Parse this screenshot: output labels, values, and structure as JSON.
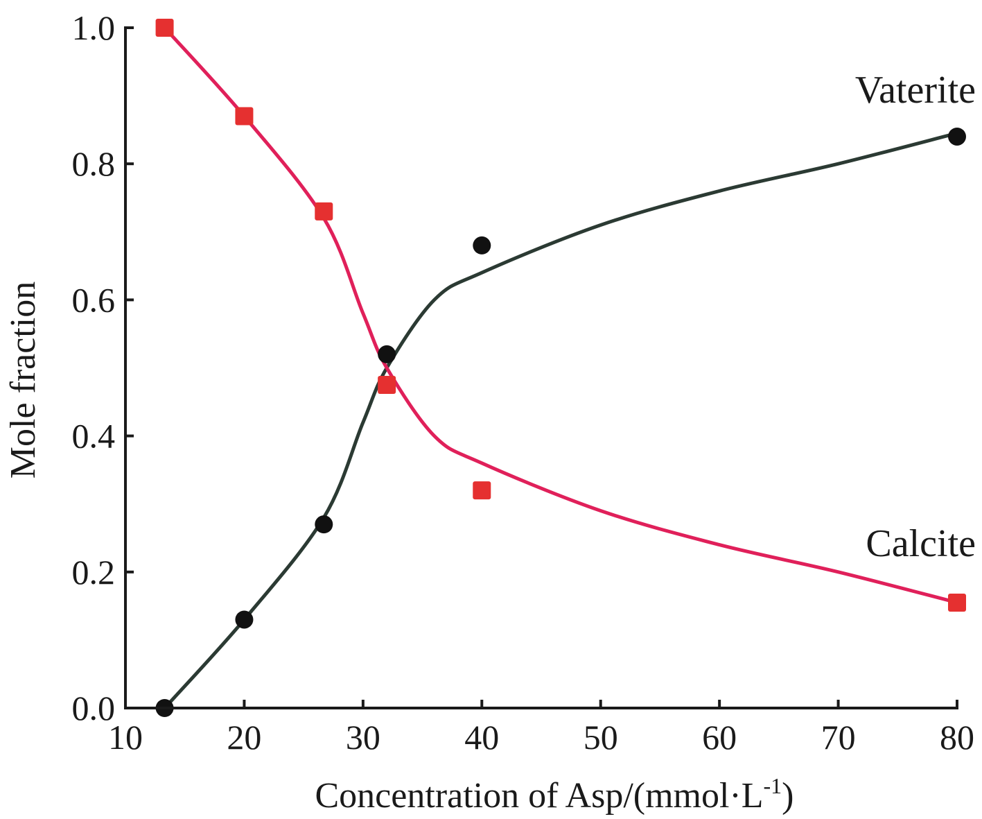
{
  "chart_data": {
    "type": "line",
    "xlabel": "Concentration of Asp/(mmol·L",
    "xlabel_superscript": "-1",
    "xlabel_suffix": ")",
    "ylabel": "Mole fraction",
    "xlim": [
      10,
      80
    ],
    "ylim": [
      0.0,
      1.0
    ],
    "xticks": [
      "10",
      "20",
      "30",
      "40",
      "50",
      "60",
      "70",
      "80"
    ],
    "yticks": [
      "0.0",
      "0.2",
      "0.4",
      "0.6",
      "0.8",
      "1.0"
    ],
    "grid": false,
    "series": [
      {
        "name": "Vaterite",
        "color": "#111111",
        "line_color": "#2b3a33",
        "marker": "circle",
        "points": [
          [
            13.3,
            0.0
          ],
          [
            20.0,
            0.13
          ],
          [
            26.7,
            0.27
          ],
          [
            32.0,
            0.52
          ],
          [
            40.0,
            0.68
          ],
          [
            80.0,
            0.84
          ]
        ],
        "curve": [
          [
            13.3,
            0.0
          ],
          [
            20.0,
            0.13
          ],
          [
            26.7,
            0.28
          ],
          [
            30.0,
            0.42
          ],
          [
            32.0,
            0.5
          ],
          [
            36.0,
            0.6
          ],
          [
            40.0,
            0.64
          ],
          [
            50.0,
            0.71
          ],
          [
            60.0,
            0.76
          ],
          [
            70.0,
            0.8
          ],
          [
            80.0,
            0.845
          ]
        ]
      },
      {
        "name": "Calcite",
        "color": "#e53030",
        "line_color": "#e0205a",
        "marker": "square",
        "points": [
          [
            13.3,
            1.0
          ],
          [
            20.0,
            0.87
          ],
          [
            26.7,
            0.73
          ],
          [
            32.0,
            0.475
          ],
          [
            40.0,
            0.32
          ],
          [
            80.0,
            0.155
          ]
        ],
        "curve": [
          [
            13.3,
            1.0
          ],
          [
            20.0,
            0.87
          ],
          [
            26.7,
            0.72
          ],
          [
            30.0,
            0.58
          ],
          [
            32.0,
            0.5
          ],
          [
            36.0,
            0.4
          ],
          [
            40.0,
            0.36
          ],
          [
            50.0,
            0.29
          ],
          [
            60.0,
            0.24
          ],
          [
            70.0,
            0.2
          ],
          [
            80.0,
            0.155
          ]
        ]
      }
    ],
    "annotations": [
      {
        "text": "Vaterite",
        "position": "upper-right"
      },
      {
        "text": "Calcite",
        "position": "lower-right"
      }
    ]
  }
}
